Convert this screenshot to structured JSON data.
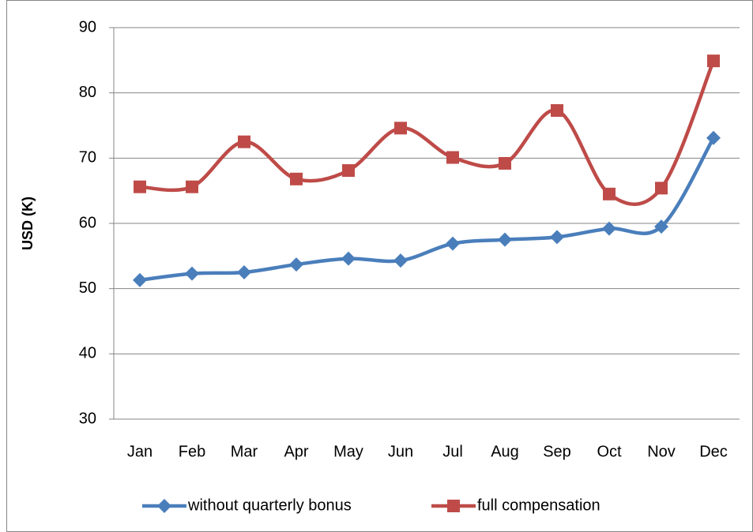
{
  "chart_data": {
    "type": "line",
    "y_label": "USD (K)",
    "categories": [
      "Jan",
      "Feb",
      "Mar",
      "Apr",
      "May",
      "Jun",
      "Jul",
      "Aug",
      "Sep",
      "Oct",
      "Nov",
      "Dec"
    ],
    "series": [
      {
        "name": "without quarterly bonus",
        "color": "#4a7ebb",
        "marker": "diamond",
        "values": [
          51.3,
          52.3,
          52.5,
          53.7,
          54.6,
          54.3,
          56.9,
          57.5,
          57.9,
          59.2,
          59.5,
          73.1
        ]
      },
      {
        "name": "full compensation",
        "color": "#be4b48",
        "marker": "square",
        "values": [
          65.6,
          65.6,
          72.5,
          66.8,
          68.1,
          74.6,
          70.1,
          69.2,
          77.3,
          64.5,
          65.4,
          84.9
        ]
      }
    ],
    "ylim": [
      30,
      90
    ],
    "yticks": [
      30,
      40,
      50,
      60,
      70,
      80,
      90
    ],
    "grid": true,
    "smooth": true,
    "legend": "bottom"
  }
}
